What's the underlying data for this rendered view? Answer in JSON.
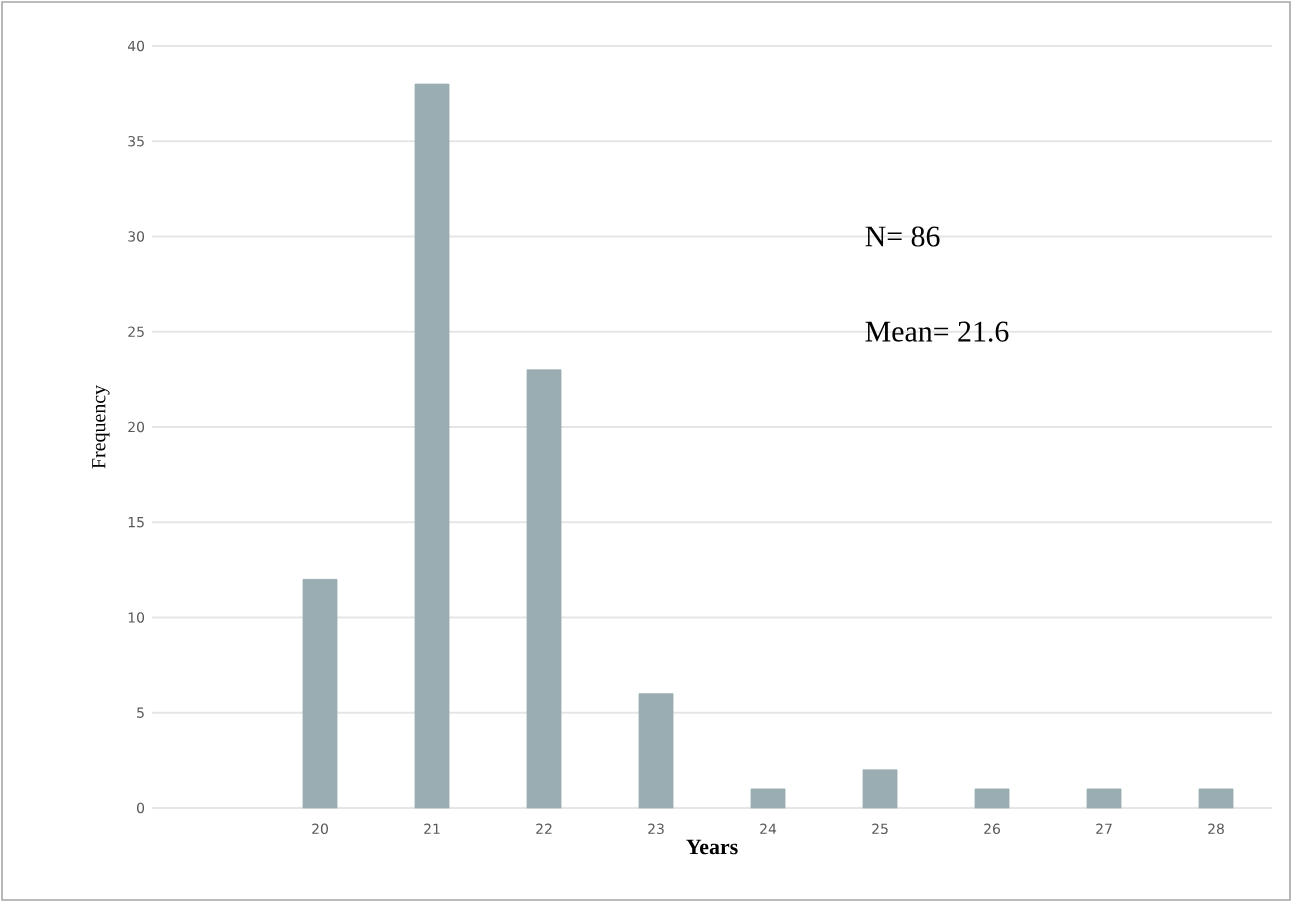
{
  "chart_data": {
    "type": "bar",
    "xlabel": "Years",
    "ylabel": "Frequency",
    "categories": [
      "20",
      "21",
      "22",
      "23",
      "24",
      "25",
      "26",
      "27",
      "28"
    ],
    "values": [
      12,
      38,
      23,
      6,
      1,
      2,
      1,
      1,
      1
    ],
    "color": "#9aadb2",
    "ylim": [
      0,
      40
    ],
    "yticks": [
      0,
      5,
      10,
      15,
      20,
      25,
      30,
      35,
      40
    ],
    "grid": "y",
    "annotations": [
      "N= 86",
      "Mean= 21.6"
    ]
  }
}
